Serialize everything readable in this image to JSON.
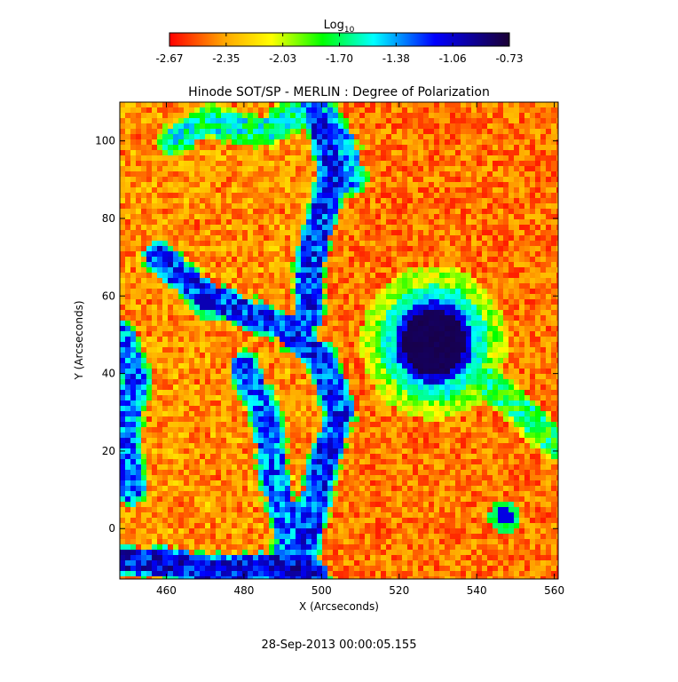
{
  "chart_data": {
    "type": "heatmap",
    "title": "Hinode SOT/SP - MERLIN : Degree of Polarization",
    "xlabel": "X (Arcseconds)",
    "ylabel": "Y (Arcseconds)",
    "xlim": [
      448,
      561
    ],
    "ylim": [
      -13,
      110
    ],
    "x_ticks": [
      460,
      480,
      500,
      520,
      540,
      560
    ],
    "y_ticks": [
      0,
      20,
      40,
      60,
      80,
      100
    ],
    "colorbar": {
      "label_base": "Log",
      "label_sub": "10",
      "ticks": [
        "-2.67",
        "-2.35",
        "-2.03",
        "-1.70",
        "-1.38",
        "-1.06",
        "-0.73"
      ],
      "range": [
        -2.67,
        -0.73
      ],
      "colormap": [
        "#ff0000",
        "#ffa500",
        "#ffff00",
        "#00ff00",
        "#00ffff",
        "#0000ff",
        "#1a0033"
      ]
    },
    "features": [
      {
        "kind": "sunspot",
        "x": 529,
        "y": 48,
        "value": -0.75
      },
      {
        "kind": "pore",
        "x": 470,
        "y": 58,
        "value": -1.0
      },
      {
        "kind": "pore",
        "x": 547,
        "y": 3,
        "value": -1.1
      }
    ],
    "network_lanes": [
      {
        "points": [
          [
            458,
            70
          ],
          [
            470,
            60
          ],
          [
            480,
            56
          ],
          [
            490,
            52
          ],
          [
            500,
            44
          ],
          [
            505,
            30
          ],
          [
            500,
            15
          ],
          [
            497,
            0
          ],
          [
            493,
            -13
          ]
        ],
        "value": -1.2
      },
      {
        "points": [
          [
            480,
            42
          ],
          [
            486,
            28
          ],
          [
            488,
            12
          ],
          [
            492,
            -2
          ],
          [
            490,
            -13
          ]
        ],
        "value": -1.3
      },
      {
        "points": [
          [
            500,
            104
          ],
          [
            503,
            92
          ],
          [
            500,
            80
          ],
          [
            497,
            68
          ],
          [
            497,
            55
          ]
        ],
        "value": -1.2
      },
      {
        "points": [
          [
            498,
            110
          ],
          [
            505,
            100
          ],
          [
            508,
            90
          ]
        ],
        "value": -1.4
      },
      {
        "points": [
          [
            448,
            -8
          ],
          [
            460,
            -9
          ],
          [
            472,
            -11
          ],
          [
            485,
            -10
          ],
          [
            498,
            -12
          ]
        ],
        "value": -1.1
      },
      {
        "points": [
          [
            448,
            50
          ],
          [
            452,
            38
          ],
          [
            449,
            25
          ],
          [
            451,
            10
          ]
        ],
        "value": -1.3
      },
      {
        "points": [
          [
            462,
            100
          ],
          [
            470,
            105
          ],
          [
            485,
            102
          ],
          [
            495,
            108
          ]
        ],
        "value": -1.6
      },
      {
        "points": [
          [
            540,
            40
          ],
          [
            552,
            30
          ],
          [
            560,
            22
          ]
        ],
        "value": -1.7
      }
    ]
  },
  "footer": {
    "timestamp": "28-Sep-2013 00:00:05.155"
  }
}
